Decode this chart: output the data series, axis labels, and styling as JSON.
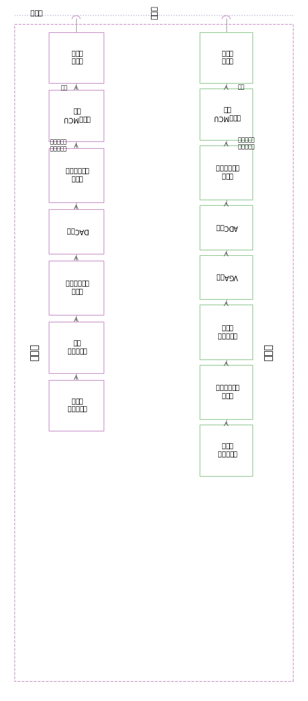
{
  "fig_width": 4.32,
  "fig_height": 10.0,
  "bg_color": "#ffffff",
  "outer_border_color": "#cc99cc",
  "tx_box_color": "#cc99cc",
  "rx_box_color": "#99cc99",
  "powerline_color": "#bbbbcc",
  "powerline_label": "电力线",
  "tx_label": "发送端",
  "rx_label": "接收端",
  "tx_blocks": [
    "发送端耦合\n器单元",
    "功率放大器\n单元",
    "发送端\n低通滤波单元",
    "DAC单元",
    "发送端\n逻辑控制单元",
    "发送端MCU\n单元",
    "发送端\n上位机"
  ],
  "rx_blocks": [
    "接收端耦合\n器单元",
    "接收端\n低通滤波单元",
    "低噪声放大\n器单元",
    "VGA单元",
    "ADC单元",
    "接收端\n逻辑控制单元",
    "接收端MCU\n单元",
    "接收端\n上位机"
  ],
  "bus_label_tx": "地址、数据\n与控制总线",
  "bus_label_rx": "地址、数据\n与控制总线",
  "net_label_tx": "网线",
  "net_label_rx": "网线"
}
